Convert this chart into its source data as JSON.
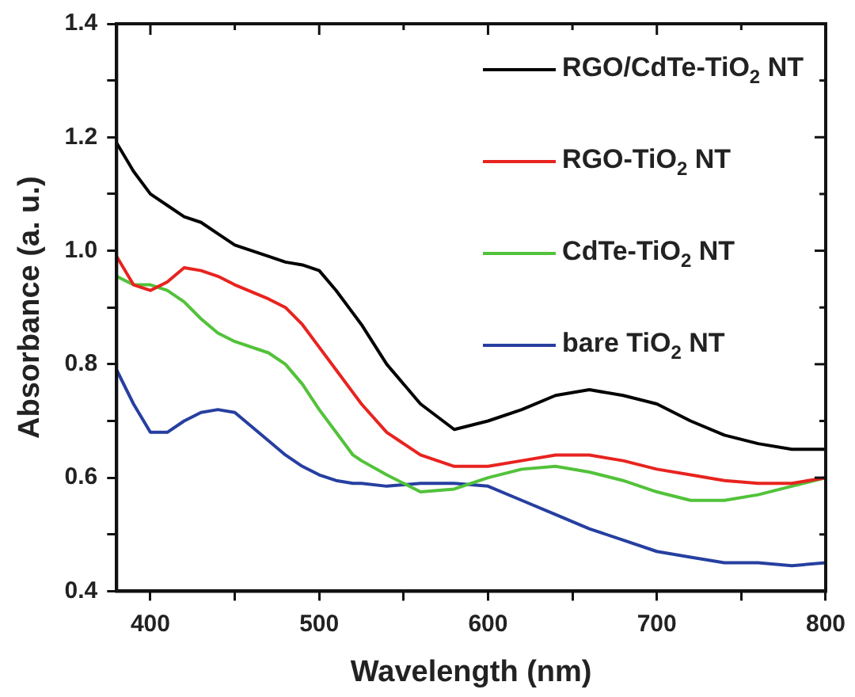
{
  "chart_data": {
    "type": "line",
    "xlabel": "Wavelength (nm)",
    "ylabel": "Absorbance (a. u.)",
    "x": [
      380,
      390,
      400,
      410,
      420,
      430,
      440,
      450,
      470,
      480,
      490,
      500,
      510,
      520,
      525,
      540,
      560,
      580,
      600,
      620,
      640,
      660,
      680,
      700,
      720,
      740,
      760,
      780,
      800
    ],
    "series": [
      {
        "name": "RGO/CdTe-TiO$_{2}$ NT",
        "color": "#000000",
        "values": [
          1.19,
          1.14,
          1.1,
          1.08,
          1.06,
          1.05,
          1.03,
          1.01,
          0.99,
          0.98,
          0.975,
          0.965,
          0.93,
          0.89,
          0.87,
          0.8,
          0.73,
          0.685,
          0.7,
          0.72,
          0.745,
          0.755,
          0.745,
          0.73,
          0.7,
          0.675,
          0.66,
          0.65,
          0.65
        ]
      },
      {
        "name": "RGO-TiO$_{2}$ NT",
        "color": "#e8231f",
        "values": [
          0.99,
          0.94,
          0.93,
          0.945,
          0.97,
          0.965,
          0.955,
          0.94,
          0.915,
          0.9,
          0.87,
          0.83,
          0.79,
          0.75,
          0.73,
          0.68,
          0.64,
          0.62,
          0.62,
          0.63,
          0.64,
          0.64,
          0.63,
          0.615,
          0.605,
          0.595,
          0.59,
          0.59,
          0.6
        ]
      },
      {
        "name": "CdTe-TiO$_{2}$ NT",
        "color": "#52c23a",
        "values": [
          0.955,
          0.94,
          0.94,
          0.93,
          0.91,
          0.88,
          0.855,
          0.84,
          0.82,
          0.8,
          0.765,
          0.72,
          0.68,
          0.64,
          0.63,
          0.605,
          0.575,
          0.58,
          0.6,
          0.615,
          0.62,
          0.61,
          0.595,
          0.575,
          0.56,
          0.56,
          0.57,
          0.585,
          0.6
        ]
      },
      {
        "name": "bare TiO$_{2}$ NT",
        "color": "#263fa0",
        "values": [
          0.79,
          0.73,
          0.68,
          0.68,
          0.7,
          0.715,
          0.72,
          0.715,
          0.665,
          0.64,
          0.62,
          0.605,
          0.595,
          0.59,
          0.59,
          0.585,
          0.59,
          0.59,
          0.585,
          0.56,
          0.535,
          0.51,
          0.49,
          0.47,
          0.46,
          0.45,
          0.45,
          0.445,
          0.45
        ]
      }
    ],
    "xlim": [
      380,
      800
    ],
    "xticks": [
      400,
      {
        "value": 450,
        "label": null
      },
      500,
      {
        "value": 550,
        "label": null
      },
      600,
      {
        "value": 650,
        "label": null
      },
      700,
      {
        "value": 750,
        "label": null
      },
      800
    ],
    "ylim": [
      0.4,
      1.4
    ],
    "yticks": [
      "0.4",
      {
        "value": 0.5,
        "label": null
      },
      {
        "value": 0.6,
        "label": "0.6"
      },
      {
        "value": 0.7,
        "label": null
      },
      {
        "value": 0.8,
        "label": "0.8"
      },
      {
        "value": 0.9,
        "label": null
      },
      {
        "value": 1.0,
        "label": "1.0"
      },
      {
        "value": 1.1,
        "label": null
      },
      {
        "value": 1.2,
        "label": "1.2"
      },
      {
        "value": 1.3,
        "label": null
      },
      {
        "value": 1.4,
        "label": "1.4"
      }
    ],
    "grid": false,
    "legend": "top right",
    "marker": "none",
    "line_style": "solid"
  }
}
